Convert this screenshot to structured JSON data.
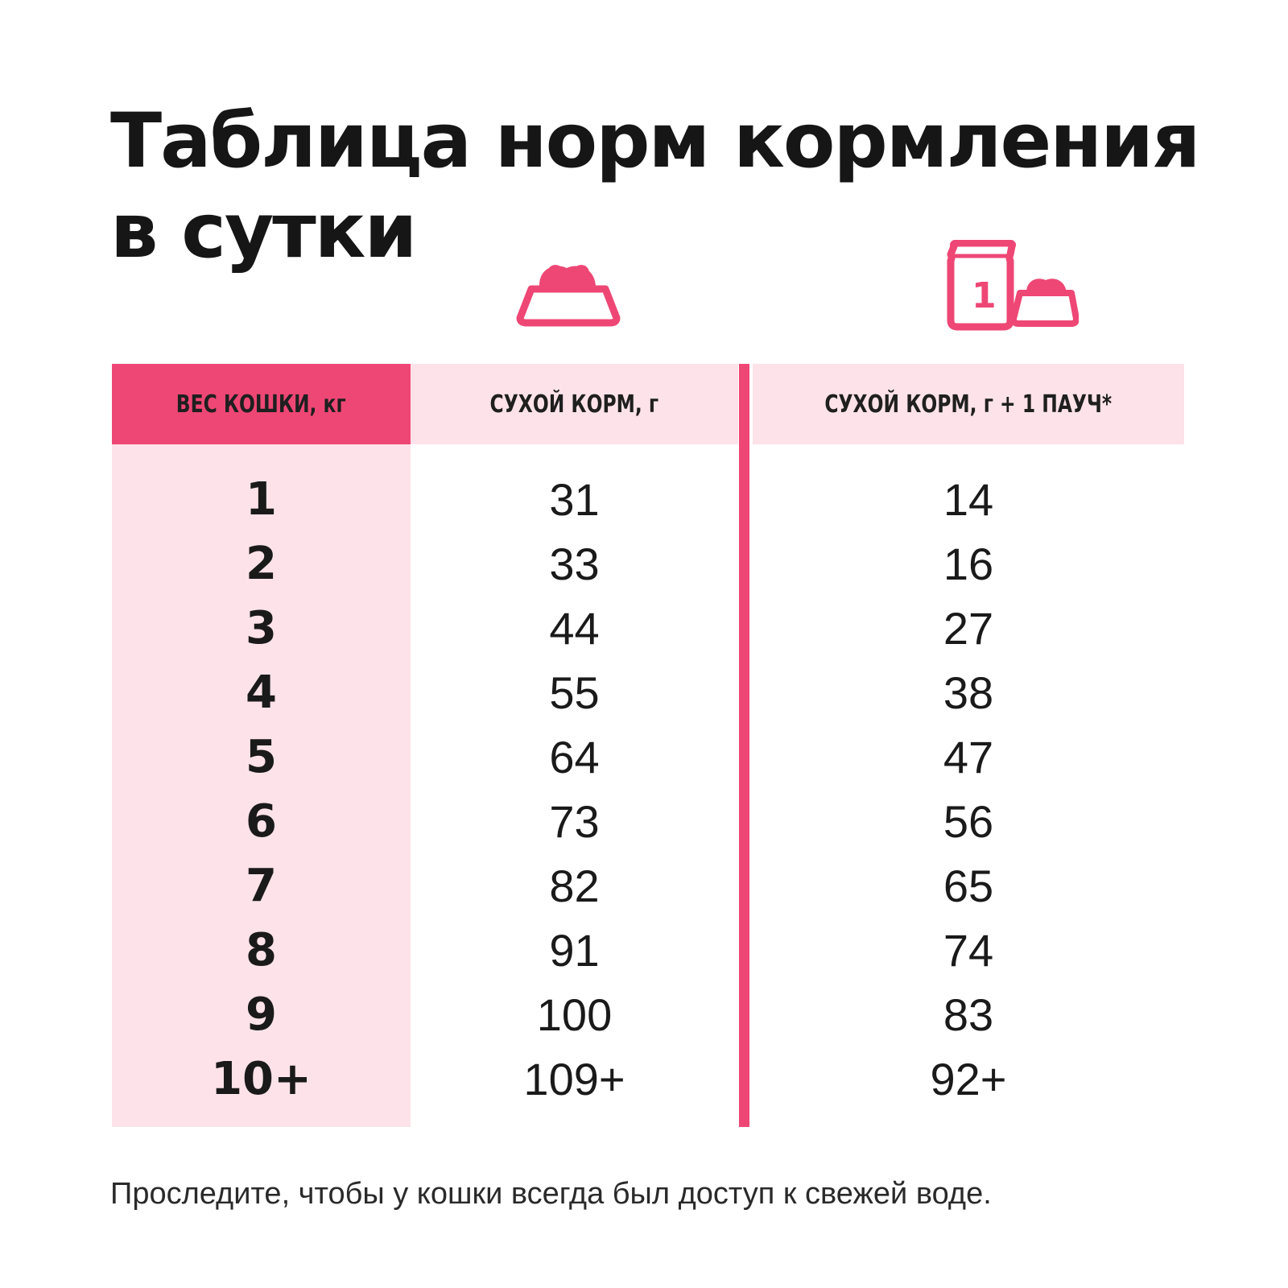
{
  "title_line1": "Таблица норм кормления",
  "title_line2": "в сутки",
  "icons": {
    "bowl": "food-bowl-icon",
    "pouch": "pouch-and-bowl-icon",
    "pouch_number": "1",
    "accent_color": "#ee4775",
    "light_color": "#fde2e9"
  },
  "table": {
    "headers": {
      "weight": "ВЕС КОШКИ, кг",
      "dry": "СУХОЙ КОРМ, г",
      "dry_pouch": "СУХОЙ КОРМ, г  + 1 ПАУЧ*"
    },
    "rows": [
      {
        "weight": "1",
        "dry": "31",
        "dry_pouch": "14"
      },
      {
        "weight": "2",
        "dry": "33",
        "dry_pouch": "16"
      },
      {
        "weight": "3",
        "dry": "44",
        "dry_pouch": "27"
      },
      {
        "weight": "4",
        "dry": "55",
        "dry_pouch": "38"
      },
      {
        "weight": "5",
        "dry": "64",
        "dry_pouch": "47"
      },
      {
        "weight": "6",
        "dry": "73",
        "dry_pouch": "56"
      },
      {
        "weight": "7",
        "dry": "82",
        "dry_pouch": "65"
      },
      {
        "weight": "8",
        "dry": "91",
        "dry_pouch": "74"
      },
      {
        "weight": "9",
        "dry": "100",
        "dry_pouch": "83"
      },
      {
        "weight": "10+",
        "dry": "109+",
        "dry_pouch": "92+"
      }
    ]
  },
  "footnote": "Проследите, чтобы у кошки всегда был доступ к свежей воде."
}
